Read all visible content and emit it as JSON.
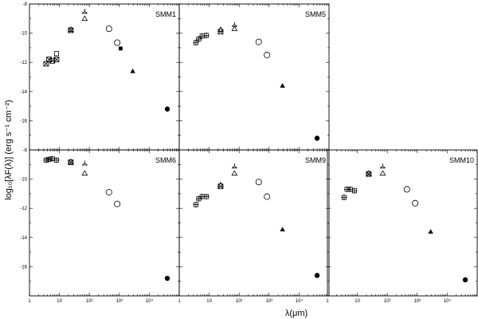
{
  "chart_data": {
    "type": "scatter",
    "xlabel": "λ(μm)",
    "ylabel": "log₁₀[λF(λ)]  (erg s⁻¹ cm⁻²)",
    "x_scale": "log",
    "xlim": [
      1,
      100000
    ],
    "ylim": [
      -18,
      -8
    ],
    "x_ticks": [
      {
        "v": 1,
        "label": "1"
      },
      {
        "v": 10,
        "label": "10"
      },
      {
        "v": 100,
        "label": "10²"
      },
      {
        "v": 1000,
        "label": "10³"
      },
      {
        "v": 10000,
        "label": "10⁴"
      }
    ],
    "y_ticks": [
      {
        "v": -8,
        "label": "-8"
      },
      {
        "v": -10,
        "label": "-10"
      },
      {
        "v": -12,
        "label": "-12"
      },
      {
        "v": -14,
        "label": "-14"
      },
      {
        "v": -16,
        "label": "-16"
      }
    ],
    "panels": [
      {
        "name": "SMM1",
        "row": 0,
        "col": 0,
        "points": [
          {
            "x": 3.6,
            "y": -12.1,
            "m": "star4"
          },
          {
            "x": 4.5,
            "y": -11.8,
            "m": "star4"
          },
          {
            "x": 5.8,
            "y": -11.9,
            "m": "star4"
          },
          {
            "x": 8.0,
            "y": -11.8,
            "m": "star4"
          },
          {
            "x": 8.0,
            "y": -11.4,
            "m": "sq-open"
          },
          {
            "x": 24,
            "y": -9.8,
            "m": "star4"
          },
          {
            "x": 24,
            "y": -9.75,
            "m": "tri-open"
          },
          {
            "x": 70,
            "y": -9.0,
            "m": "tri-open"
          },
          {
            "x": 70,
            "y": -8.5,
            "m": "tri-y"
          },
          {
            "x": 450,
            "y": -9.7,
            "m": "circ-open"
          },
          {
            "x": 850,
            "y": -10.65,
            "m": "circ-open"
          },
          {
            "x": 1100,
            "y": -11.05,
            "m": "sq-filled"
          },
          {
            "x": 2800,
            "y": -12.6,
            "m": "tri-filled"
          },
          {
            "x": 40000,
            "y": -15.2,
            "m": "circ-filled"
          }
        ]
      },
      {
        "name": "SMM5",
        "row": 0,
        "col": 1,
        "points": [
          {
            "x": 3.6,
            "y": -10.65,
            "m": "sq-star"
          },
          {
            "x": 4.5,
            "y": -10.4,
            "m": "sq-star"
          },
          {
            "x": 5.8,
            "y": -10.2,
            "m": "sq-star"
          },
          {
            "x": 8.0,
            "y": -10.15,
            "m": "sq-star"
          },
          {
            "x": 24,
            "y": -9.9,
            "m": "star4"
          },
          {
            "x": 24,
            "y": -9.75,
            "m": "tri-open"
          },
          {
            "x": 70,
            "y": -9.7,
            "m": "tri-open"
          },
          {
            "x": 70,
            "y": -9.4,
            "m": "tri-y"
          },
          {
            "x": 450,
            "y": -10.6,
            "m": "circ-open"
          },
          {
            "x": 850,
            "y": -11.5,
            "m": "circ-open"
          },
          {
            "x": 2800,
            "y": -13.6,
            "m": "tri-filled"
          },
          {
            "x": 40000,
            "y": -17.2,
            "m": "circ-filled"
          }
        ]
      },
      {
        "name": "SMM6",
        "row": 1,
        "col": 0,
        "points": [
          {
            "x": 3.6,
            "y": -8.7,
            "m": "sq-star"
          },
          {
            "x": 4.5,
            "y": -8.65,
            "m": "sq-star"
          },
          {
            "x": 5.8,
            "y": -8.6,
            "m": "sq-star"
          },
          {
            "x": 8.0,
            "y": -8.7,
            "m": "sq-star"
          },
          {
            "x": 24,
            "y": -8.85,
            "m": "star4"
          },
          {
            "x": 24,
            "y": -8.8,
            "m": "tri-open"
          },
          {
            "x": 70,
            "y": -9.6,
            "m": "tri-open"
          },
          {
            "x": 70,
            "y": -8.9,
            "m": "tri-y"
          },
          {
            "x": 450,
            "y": -10.9,
            "m": "circ-open"
          },
          {
            "x": 850,
            "y": -11.7,
            "m": "circ-open"
          },
          {
            "x": 40000,
            "y": -16.8,
            "m": "circ-filled"
          }
        ]
      },
      {
        "name": "SMM9",
        "row": 1,
        "col": 1,
        "points": [
          {
            "x": 3.6,
            "y": -11.75,
            "m": "sq-star"
          },
          {
            "x": 4.5,
            "y": -11.35,
            "m": "sq-star"
          },
          {
            "x": 5.8,
            "y": -11.2,
            "m": "sq-star"
          },
          {
            "x": 8.0,
            "y": -11.2,
            "m": "sq-star"
          },
          {
            "x": 24,
            "y": -10.5,
            "m": "star4"
          },
          {
            "x": 24,
            "y": -10.4,
            "m": "tri-open"
          },
          {
            "x": 70,
            "y": -9.6,
            "m": "tri-open"
          },
          {
            "x": 70,
            "y": -9.1,
            "m": "tri-y"
          },
          {
            "x": 450,
            "y": -10.2,
            "m": "circ-open"
          },
          {
            "x": 850,
            "y": -11.2,
            "m": "circ-open"
          },
          {
            "x": 2800,
            "y": -13.45,
            "m": "tri-filled"
          },
          {
            "x": 40000,
            "y": -16.6,
            "m": "circ-filled"
          }
        ]
      },
      {
        "name": "SMM10",
        "row": 1,
        "col": 2,
        "points": [
          {
            "x": 3.6,
            "y": -11.25,
            "m": "sq-star"
          },
          {
            "x": 4.5,
            "y": -10.7,
            "m": "sq-star"
          },
          {
            "x": 5.8,
            "y": -10.7,
            "m": "sq-star"
          },
          {
            "x": 8.0,
            "y": -10.8,
            "m": "sq-star"
          },
          {
            "x": 24,
            "y": -9.65,
            "m": "star4"
          },
          {
            "x": 24,
            "y": -9.6,
            "m": "tri-open"
          },
          {
            "x": 70,
            "y": -9.6,
            "m": "tri-open"
          },
          {
            "x": 70,
            "y": -9.1,
            "m": "tri-y"
          },
          {
            "x": 450,
            "y": -10.7,
            "m": "circ-open"
          },
          {
            "x": 850,
            "y": -11.65,
            "m": "circ-open"
          },
          {
            "x": 2800,
            "y": -13.6,
            "m": "tri-filled"
          },
          {
            "x": 40000,
            "y": -16.9,
            "m": "circ-filled"
          }
        ]
      }
    ]
  }
}
